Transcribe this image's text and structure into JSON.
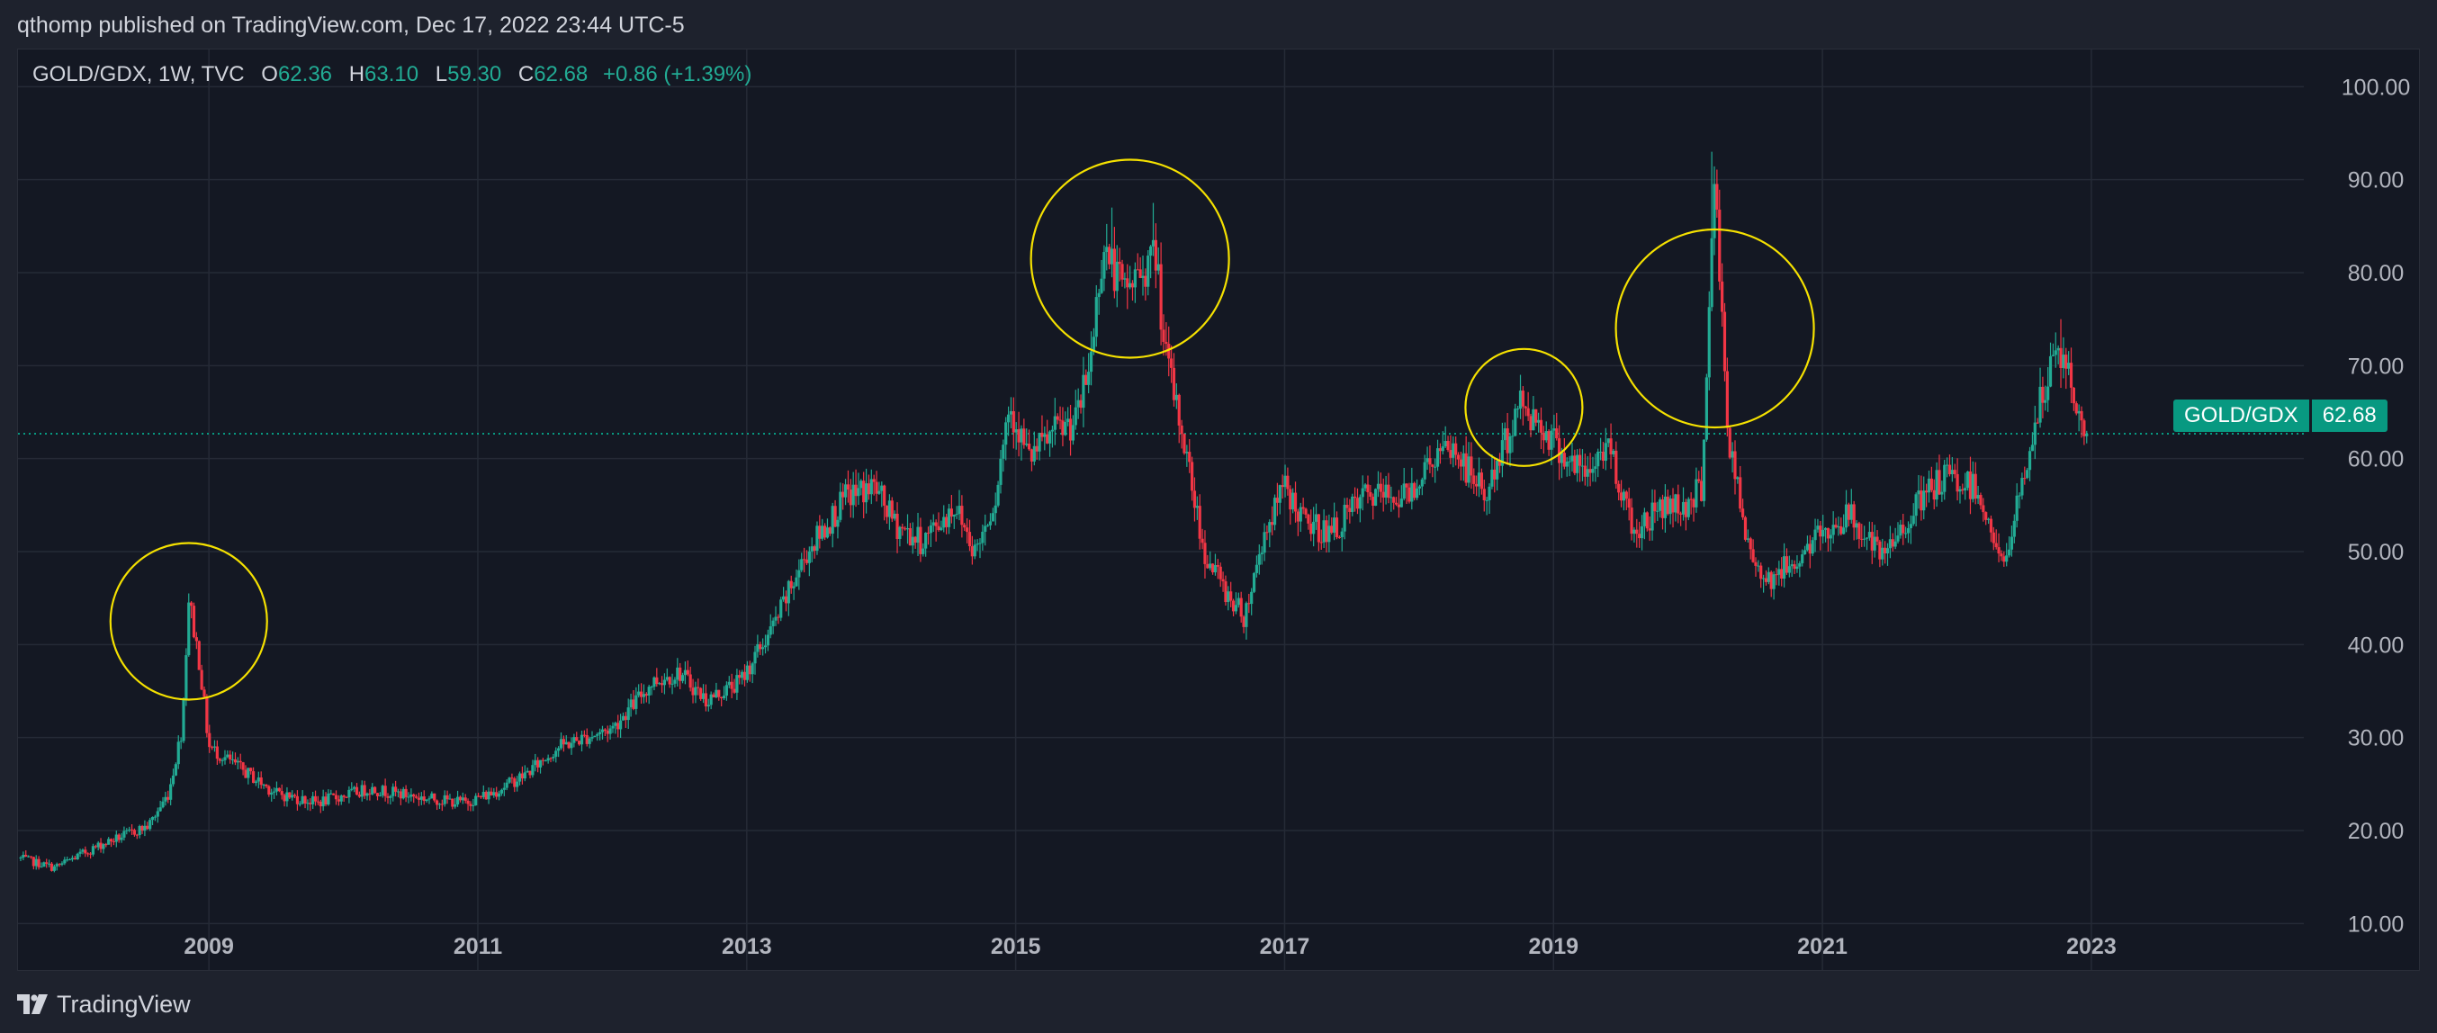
{
  "header": {
    "published": "qthomp published on TradingView.com, Dec 17, 2022 23:44 UTC-5"
  },
  "legend": {
    "symbol": "GOLD/GDX, 1W, TVC",
    "open_label": "O",
    "open": "62.36",
    "high_label": "H",
    "high": "63.10",
    "low_label": "L",
    "low": "59.30",
    "close_label": "C",
    "close": "62.68",
    "change": "+0.86 (+1.39%)"
  },
  "price_tag": {
    "symbol": "GOLD/GDX",
    "value": "62.68"
  },
  "footer": {
    "brand": "TradingView",
    "logo_icon": "tradingview-logo-icon"
  },
  "colors": {
    "up": "#22ab94",
    "down": "#f23645",
    "circle": "#f5e100",
    "background": "#141823",
    "grid": "#252a36"
  },
  "chart_data": {
    "type": "candlestick",
    "interval": "1W",
    "xlim": [
      2007.58,
      2024.58
    ],
    "ylim": [
      5,
      104
    ],
    "y_ticks": [
      "100.00",
      "90.00",
      "80.00",
      "70.00",
      "60.00",
      "50.00",
      "40.00",
      "30.00",
      "20.00",
      "10.00"
    ],
    "x_ticks": [
      "2009",
      "2011",
      "2013",
      "2015",
      "2017",
      "2019",
      "2021",
      "2023"
    ],
    "last_price": 62.68,
    "series_waypoints": [
      [
        2007.6,
        17
      ],
      [
        2007.85,
        16
      ],
      [
        2008.2,
        18.5
      ],
      [
        2008.55,
        20.5
      ],
      [
        2008.7,
        24
      ],
      [
        2008.8,
        31
      ],
      [
        2008.85,
        45
      ],
      [
        2008.93,
        38
      ],
      [
        2009.0,
        29
      ],
      [
        2009.2,
        27
      ],
      [
        2009.5,
        24
      ],
      [
        2009.8,
        23
      ],
      [
        2010.2,
        24.5
      ],
      [
        2010.6,
        23.5
      ],
      [
        2010.9,
        23
      ],
      [
        2011.1,
        24
      ],
      [
        2011.35,
        26
      ],
      [
        2011.6,
        29
      ],
      [
        2012.0,
        31
      ],
      [
        2012.3,
        36
      ],
      [
        2012.5,
        37
      ],
      [
        2012.7,
        34
      ],
      [
        2012.95,
        36
      ],
      [
        2013.2,
        42
      ],
      [
        2013.45,
        50
      ],
      [
        2013.75,
        56
      ],
      [
        2013.95,
        57
      ],
      [
        2014.1,
        53
      ],
      [
        2014.3,
        51
      ],
      [
        2014.55,
        55
      ],
      [
        2014.7,
        50
      ],
      [
        2014.85,
        56
      ],
      [
        2014.95,
        66
      ],
      [
        2015.1,
        60
      ],
      [
        2015.3,
        63
      ],
      [
        2015.45,
        64
      ],
      [
        2015.55,
        70
      ],
      [
        2015.65,
        83
      ],
      [
        2015.8,
        78
      ],
      [
        2015.92,
        80
      ],
      [
        2016.05,
        82
      ],
      [
        2016.1,
        72
      ],
      [
        2016.25,
        62
      ],
      [
        2016.4,
        50
      ],
      [
        2016.55,
        46
      ],
      [
        2016.7,
        43
      ],
      [
        2016.85,
        52
      ],
      [
        2017.0,
        57
      ],
      [
        2017.15,
        53
      ],
      [
        2017.35,
        52
      ],
      [
        2017.6,
        56
      ],
      [
        2017.9,
        56
      ],
      [
        2018.1,
        60
      ],
      [
        2018.25,
        61
      ],
      [
        2018.5,
        56
      ],
      [
        2018.75,
        66
      ],
      [
        2018.95,
        63
      ],
      [
        2019.1,
        60
      ],
      [
        2019.25,
        58
      ],
      [
        2019.4,
        62
      ],
      [
        2019.6,
        52
      ],
      [
        2019.8,
        55
      ],
      [
        2020.0,
        55
      ],
      [
        2020.1,
        57
      ],
      [
        2020.2,
        90
      ],
      [
        2020.3,
        62
      ],
      [
        2020.45,
        50
      ],
      [
        2020.6,
        47
      ],
      [
        2020.8,
        49
      ],
      [
        2021.0,
        52
      ],
      [
        2021.2,
        54
      ],
      [
        2021.45,
        49
      ],
      [
        2021.65,
        54
      ],
      [
        2021.9,
        58
      ],
      [
        2022.15,
        57
      ],
      [
        2022.35,
        48
      ],
      [
        2022.45,
        55
      ],
      [
        2022.6,
        65
      ],
      [
        2022.75,
        72
      ],
      [
        2022.85,
        68
      ],
      [
        2022.9,
        64
      ],
      [
        2022.97,
        62.68
      ]
    ],
    "highlight_circles": [
      {
        "center_date": 2008.85,
        "center_price": 42.5,
        "label": ""
      },
      {
        "center_date": 2015.85,
        "center_price": 81.5,
        "label": ""
      },
      {
        "center_date": 2018.78,
        "center_price": 65.5,
        "label": ""
      },
      {
        "center_date": 2020.2,
        "center_price": 74.0,
        "label": ""
      }
    ]
  }
}
